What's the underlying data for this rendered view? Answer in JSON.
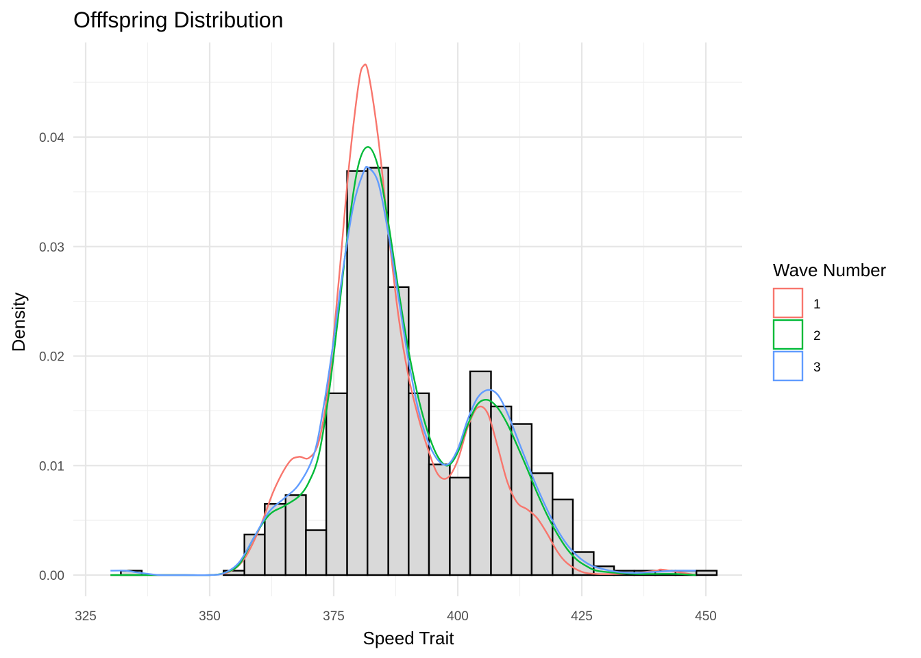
{
  "chart_data": {
    "type": "bar",
    "title": "Offfspring Distribution",
    "xlabel": "Speed Trait",
    "ylabel": "Density",
    "xlim": [
      325,
      453
    ],
    "ylim": [
      0,
      0.048
    ],
    "x_ticks": [
      325,
      350,
      375,
      400,
      425,
      450
    ],
    "x_tick_labels": [
      "325",
      "350",
      "375",
      "400",
      "425",
      "450"
    ],
    "y_ticks": [
      0,
      0.01,
      0.02,
      0.03,
      0.04
    ],
    "y_tick_labels": [
      "0.00",
      "0.01",
      "0.02",
      "0.03",
      "0.04"
    ],
    "grid": true,
    "legend_position": "right",
    "legend_title": "Wave Number",
    "histogram": {
      "fill": "#d9d9d9",
      "stroke": "#000000",
      "bins": [
        {
          "x0": 328.0,
          "x1": 332.1,
          "density": 0.0
        },
        {
          "x0": 332.1,
          "x1": 336.3,
          "density": 0.0004
        },
        {
          "x0": 336.3,
          "x1": 340.4,
          "density": 0.0
        },
        {
          "x0": 340.4,
          "x1": 344.6,
          "density": 0.0
        },
        {
          "x0": 344.6,
          "x1": 348.7,
          "density": 0.0
        },
        {
          "x0": 348.7,
          "x1": 352.8,
          "density": 0.0
        },
        {
          "x0": 352.8,
          "x1": 357.0,
          "density": 0.0004
        },
        {
          "x0": 357.0,
          "x1": 361.1,
          "density": 0.0037
        },
        {
          "x0": 361.1,
          "x1": 365.3,
          "density": 0.0065
        },
        {
          "x0": 365.3,
          "x1": 369.4,
          "density": 0.0073
        },
        {
          "x0": 369.4,
          "x1": 373.5,
          "density": 0.0041
        },
        {
          "x0": 373.5,
          "x1": 377.7,
          "density": 0.0166
        },
        {
          "x0": 377.7,
          "x1": 381.8,
          "density": 0.0369
        },
        {
          "x0": 381.8,
          "x1": 386.0,
          "density": 0.0372
        },
        {
          "x0": 386.0,
          "x1": 390.1,
          "density": 0.0263
        },
        {
          "x0": 390.1,
          "x1": 394.2,
          "density": 0.0166
        },
        {
          "x0": 394.2,
          "x1": 398.4,
          "density": 0.0101
        },
        {
          "x0": 398.4,
          "x1": 402.5,
          "density": 0.0089
        },
        {
          "x0": 402.5,
          "x1": 406.7,
          "density": 0.0186
        },
        {
          "x0": 406.7,
          "x1": 410.8,
          "density": 0.0154
        },
        {
          "x0": 410.8,
          "x1": 414.9,
          "density": 0.0138
        },
        {
          "x0": 414.9,
          "x1": 419.1,
          "density": 0.0093
        },
        {
          "x0": 419.1,
          "x1": 423.2,
          "density": 0.0069
        },
        {
          "x0": 423.2,
          "x1": 427.4,
          "density": 0.0021
        },
        {
          "x0": 427.4,
          "x1": 431.5,
          "density": 0.0008
        },
        {
          "x0": 431.5,
          "x1": 435.6,
          "density": 0.0004
        },
        {
          "x0": 435.6,
          "x1": 439.8,
          "density": 0.0004
        },
        {
          "x0": 439.8,
          "x1": 443.9,
          "density": 0.0004
        },
        {
          "x0": 443.9,
          "x1": 448.1,
          "density": 0.0004
        },
        {
          "x0": 448.1,
          "x1": 452.2,
          "density": 0.0004
        }
      ]
    },
    "series": [
      {
        "name": "1",
        "color": "#F8766D",
        "x": [
          330,
          335,
          340,
          345,
          350,
          354,
          357,
          360,
          363,
          366,
          368,
          370,
          372,
          374,
          376,
          378,
          380,
          381,
          382,
          384,
          386,
          388,
          390,
          392,
          394,
          396,
          398,
          400,
          402,
          404,
          406,
          408,
          410,
          412,
          414,
          416,
          418,
          420,
          422,
          425,
          428,
          432,
          436,
          440,
          441,
          444,
          448
        ],
        "y": [
          0.0,
          0.0,
          0.0,
          0.0,
          0.0,
          0.0003,
          0.0015,
          0.0042,
          0.0078,
          0.0103,
          0.0108,
          0.0107,
          0.0122,
          0.0175,
          0.0268,
          0.037,
          0.0448,
          0.0465,
          0.0458,
          0.0398,
          0.0315,
          0.0238,
          0.0183,
          0.0145,
          0.0115,
          0.0092,
          0.0089,
          0.0105,
          0.0135,
          0.0153,
          0.0148,
          0.0118,
          0.0085,
          0.0066,
          0.006,
          0.0052,
          0.0038,
          0.0022,
          0.0011,
          0.0003,
          0.0001,
          0.0001,
          0.0002,
          0.0004,
          0.0005,
          0.0003,
          0.0
        ]
      },
      {
        "name": "2",
        "color": "#00BA38",
        "x": [
          330,
          335,
          340,
          345,
          350,
          353,
          356,
          359,
          362,
          365,
          368,
          370,
          372,
          374,
          376,
          378,
          380,
          382,
          384,
          386,
          388,
          390,
          392,
          394,
          396,
          398,
          400,
          402,
          404,
          406,
          408,
          410,
          412,
          414,
          416,
          418,
          420,
          422,
          424,
          426,
          428,
          432,
          436,
          440,
          444,
          448
        ],
        "y": [
          0.0,
          0.0,
          0.0,
          0.0,
          0.0,
          0.0002,
          0.001,
          0.0035,
          0.0055,
          0.0063,
          0.0072,
          0.0085,
          0.011,
          0.0165,
          0.024,
          0.0318,
          0.0375,
          0.0391,
          0.0372,
          0.0322,
          0.0262,
          0.0207,
          0.0163,
          0.013,
          0.0108,
          0.01,
          0.0112,
          0.0137,
          0.0156,
          0.016,
          0.0153,
          0.0138,
          0.0118,
          0.0097,
          0.0075,
          0.0055,
          0.0038,
          0.0024,
          0.0014,
          0.0008,
          0.0004,
          0.0002,
          0.0001,
          0.0001,
          0.0001,
          0.0
        ]
      },
      {
        "name": "3",
        "color": "#619CFF",
        "x": [
          330,
          333,
          336,
          340,
          345,
          350,
          353,
          356,
          359,
          362,
          365,
          368,
          371,
          373,
          375,
          377,
          379,
          381,
          382,
          384,
          386,
          388,
          390,
          392,
          394,
          396,
          398,
          400,
          402,
          404,
          406,
          408,
          410,
          412,
          414,
          416,
          418,
          420,
          422,
          424,
          426,
          428,
          432,
          436,
          440,
          444,
          448
        ],
        "y": [
          0.0004,
          0.0004,
          0.0002,
          0.0,
          0.0,
          0.0,
          0.0002,
          0.0012,
          0.0035,
          0.0058,
          0.007,
          0.0083,
          0.011,
          0.0155,
          0.0215,
          0.0283,
          0.0338,
          0.0368,
          0.0372,
          0.0358,
          0.0312,
          0.0255,
          0.0198,
          0.0152,
          0.0122,
          0.0105,
          0.0101,
          0.0115,
          0.0142,
          0.0162,
          0.0169,
          0.0165,
          0.0148,
          0.0125,
          0.0102,
          0.008,
          0.006,
          0.0042,
          0.0028,
          0.0018,
          0.0011,
          0.0007,
          0.0003,
          0.0002,
          0.0003,
          0.0004,
          0.0004
        ]
      }
    ]
  }
}
